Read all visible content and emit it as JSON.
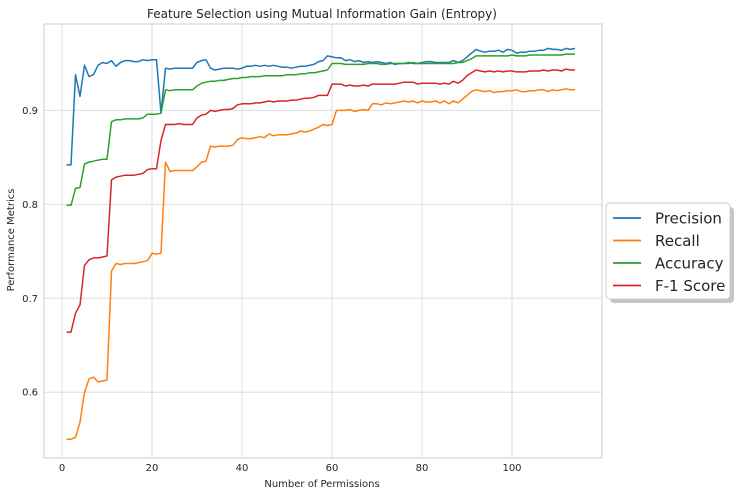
{
  "chart_data": {
    "type": "line",
    "title": "Feature Selection using Mutual Information Gain (Entropy)",
    "xlabel": "Number of Permissions",
    "ylabel": "Performance Metrics",
    "xlim": [
      -4,
      120
    ],
    "ylim": [
      0.53,
      0.992
    ],
    "xticks": [
      0,
      20,
      40,
      60,
      80,
      100
    ],
    "yticks": [
      0.6,
      0.7,
      0.8,
      0.9
    ],
    "grid": true,
    "legend_position": "right-outside",
    "x": [
      1,
      2,
      3,
      4,
      5,
      6,
      7,
      8,
      9,
      10,
      11,
      12,
      13,
      14,
      15,
      16,
      17,
      18,
      19,
      20,
      21,
      22,
      23,
      24,
      25,
      26,
      27,
      28,
      29,
      30,
      31,
      32,
      33,
      34,
      35,
      36,
      37,
      38,
      39,
      40,
      41,
      42,
      43,
      44,
      45,
      46,
      47,
      48,
      49,
      50,
      51,
      52,
      53,
      54,
      55,
      56,
      57,
      58,
      59,
      60,
      61,
      62,
      63,
      64,
      65,
      66,
      67,
      68,
      69,
      70,
      71,
      72,
      73,
      74,
      75,
      76,
      77,
      78,
      79,
      80,
      81,
      82,
      83,
      84,
      85,
      86,
      87,
      88,
      89,
      90,
      91,
      92,
      93,
      94,
      95,
      96,
      97,
      98,
      99,
      100,
      101,
      102,
      103,
      104,
      105,
      106,
      107,
      108,
      109,
      110,
      111,
      112,
      113,
      114
    ],
    "series": [
      {
        "name": "Precision",
        "color": "#1f77b4",
        "values": [
          0.842,
          0.842,
          0.938,
          0.915,
          0.948,
          0.936,
          0.938,
          0.948,
          0.951,
          0.95,
          0.953,
          0.947,
          0.951,
          0.953,
          0.953,
          0.952,
          0.952,
          0.954,
          0.953,
          0.954,
          0.954,
          0.897,
          0.945,
          0.944,
          0.945,
          0.945,
          0.945,
          0.945,
          0.945,
          0.951,
          0.953,
          0.954,
          0.945,
          0.943,
          0.944,
          0.945,
          0.945,
          0.945,
          0.944,
          0.945,
          0.947,
          0.947,
          0.948,
          0.947,
          0.948,
          0.947,
          0.948,
          0.947,
          0.946,
          0.946,
          0.945,
          0.946,
          0.947,
          0.947,
          0.948,
          0.949,
          0.952,
          0.953,
          0.958,
          0.957,
          0.956,
          0.956,
          0.953,
          0.954,
          0.952,
          0.953,
          0.951,
          0.952,
          0.951,
          0.952,
          0.951,
          0.95,
          0.951,
          0.949,
          0.95,
          0.95,
          0.951,
          0.95,
          0.95,
          0.951,
          0.952,
          0.952,
          0.951,
          0.951,
          0.951,
          0.951,
          0.953,
          0.951,
          0.953,
          0.957,
          0.961,
          0.965,
          0.963,
          0.962,
          0.963,
          0.963,
          0.964,
          0.962,
          0.965,
          0.964,
          0.961,
          0.962,
          0.962,
          0.963,
          0.963,
          0.964,
          0.964,
          0.966,
          0.965,
          0.965,
          0.964,
          0.966,
          0.965,
          0.966
        ]
      },
      {
        "name": "Recall",
        "color": "#ff7f0e",
        "values": [
          0.55,
          0.55,
          0.552,
          0.568,
          0.6,
          0.614,
          0.616,
          0.611,
          0.612,
          0.613,
          0.729,
          0.737,
          0.736,
          0.737,
          0.737,
          0.737,
          0.738,
          0.739,
          0.74,
          0.748,
          0.747,
          0.748,
          0.845,
          0.835,
          0.836,
          0.836,
          0.836,
          0.836,
          0.836,
          0.84,
          0.845,
          0.846,
          0.862,
          0.861,
          0.862,
          0.862,
          0.862,
          0.863,
          0.869,
          0.871,
          0.87,
          0.87,
          0.871,
          0.872,
          0.871,
          0.875,
          0.873,
          0.874,
          0.874,
          0.874,
          0.875,
          0.876,
          0.878,
          0.877,
          0.878,
          0.88,
          0.882,
          0.885,
          0.884,
          0.885,
          0.9,
          0.9,
          0.9,
          0.901,
          0.899,
          0.9,
          0.901,
          0.9,
          0.907,
          0.907,
          0.906,
          0.908,
          0.907,
          0.908,
          0.909,
          0.91,
          0.909,
          0.91,
          0.908,
          0.91,
          0.909,
          0.909,
          0.91,
          0.908,
          0.91,
          0.907,
          0.91,
          0.908,
          0.912,
          0.916,
          0.92,
          0.922,
          0.921,
          0.92,
          0.921,
          0.919,
          0.92,
          0.92,
          0.921,
          0.921,
          0.922,
          0.92,
          0.92,
          0.921,
          0.921,
          0.922,
          0.922,
          0.92,
          0.922,
          0.921,
          0.922,
          0.923,
          0.922,
          0.922
        ]
      },
      {
        "name": "Accuracy",
        "color": "#2ca02c",
        "values": [
          0.799,
          0.799,
          0.817,
          0.818,
          0.843,
          0.845,
          0.846,
          0.847,
          0.848,
          0.848,
          0.888,
          0.89,
          0.89,
          0.891,
          0.891,
          0.891,
          0.891,
          0.892,
          0.896,
          0.896,
          0.896,
          0.897,
          0.922,
          0.921,
          0.922,
          0.922,
          0.922,
          0.922,
          0.922,
          0.926,
          0.929,
          0.93,
          0.931,
          0.931,
          0.932,
          0.932,
          0.933,
          0.934,
          0.934,
          0.935,
          0.935,
          0.936,
          0.936,
          0.936,
          0.937,
          0.937,
          0.937,
          0.937,
          0.937,
          0.938,
          0.938,
          0.938,
          0.939,
          0.939,
          0.94,
          0.94,
          0.941,
          0.942,
          0.943,
          0.95,
          0.95,
          0.95,
          0.949,
          0.949,
          0.949,
          0.949,
          0.949,
          0.95,
          0.95,
          0.95,
          0.949,
          0.949,
          0.95,
          0.95,
          0.95,
          0.95,
          0.95,
          0.951,
          0.95,
          0.95,
          0.95,
          0.95,
          0.95,
          0.95,
          0.95,
          0.95,
          0.95,
          0.951,
          0.951,
          0.953,
          0.955,
          0.958,
          0.958,
          0.958,
          0.958,
          0.958,
          0.958,
          0.958,
          0.958,
          0.959,
          0.958,
          0.958,
          0.958,
          0.959,
          0.959,
          0.959,
          0.959,
          0.959,
          0.959,
          0.959,
          0.959,
          0.96,
          0.96,
          0.96
        ]
      },
      {
        "name": "F-1 Score",
        "color": "#d62728",
        "values": [
          0.664,
          0.664,
          0.684,
          0.693,
          0.735,
          0.741,
          0.743,
          0.743,
          0.744,
          0.745,
          0.826,
          0.829,
          0.83,
          0.831,
          0.831,
          0.831,
          0.832,
          0.833,
          0.837,
          0.838,
          0.838,
          0.868,
          0.885,
          0.885,
          0.885,
          0.886,
          0.885,
          0.885,
          0.885,
          0.892,
          0.895,
          0.896,
          0.9,
          0.899,
          0.9,
          0.901,
          0.901,
          0.902,
          0.906,
          0.907,
          0.907,
          0.907,
          0.908,
          0.908,
          0.909,
          0.91,
          0.909,
          0.91,
          0.91,
          0.91,
          0.911,
          0.911,
          0.912,
          0.913,
          0.913,
          0.914,
          0.916,
          0.916,
          0.916,
          0.928,
          0.928,
          0.928,
          0.926,
          0.927,
          0.926,
          0.926,
          0.927,
          0.926,
          0.928,
          0.928,
          0.928,
          0.928,
          0.928,
          0.928,
          0.929,
          0.93,
          0.93,
          0.93,
          0.928,
          0.929,
          0.929,
          0.929,
          0.929,
          0.928,
          0.929,
          0.928,
          0.931,
          0.929,
          0.932,
          0.937,
          0.94,
          0.943,
          0.942,
          0.941,
          0.942,
          0.941,
          0.942,
          0.941,
          0.942,
          0.942,
          0.941,
          0.941,
          0.941,
          0.942,
          0.942,
          0.942,
          0.943,
          0.942,
          0.943,
          0.943,
          0.942,
          0.944,
          0.943,
          0.943
        ]
      }
    ]
  }
}
